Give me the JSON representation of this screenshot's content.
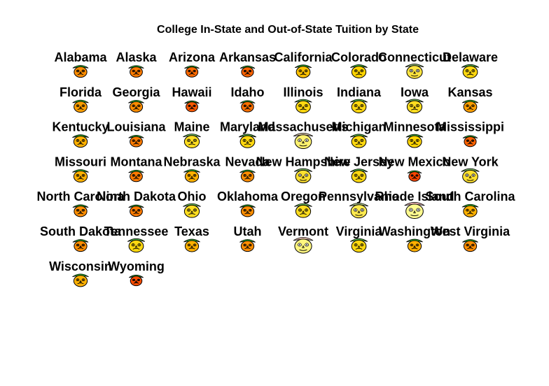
{
  "chart_data": {
    "type": "chernoff-faces",
    "title": "College In-State and Out-of-State Tuition by State",
    "states": [
      "Alabama",
      "Alaska",
      "Arizona",
      "Arkansas",
      "California",
      "Colorado",
      "Connecticut",
      "Delaware",
      "Florida",
      "Georgia",
      "Hawaii",
      "Idaho",
      "Illinois",
      "Indiana",
      "Iowa",
      "Kansas",
      "Kentucky",
      "Louisiana",
      "Maine",
      "Maryland",
      "Massachusetts",
      "Michigan",
      "Minnesota",
      "Mississippi",
      "Missouri",
      "Montana",
      "Nebraska",
      "Nevada",
      "New Hampshire",
      "New Jersey",
      "New Mexico",
      "New York",
      "North Carolina",
      "North Dakota",
      "Ohio",
      "Oklahoma",
      "Oregon",
      "Pennsylvania",
      "Rhode Island",
      "South Carolina",
      "South Dakota",
      "Tennessee",
      "Texas",
      "Utah",
      "Vermont",
      "Virginia",
      "Washington",
      "West Virginia",
      "Wisconsin",
      "Wyoming"
    ],
    "face_levels": [
      0.3,
      0.25,
      0.2,
      0.18,
      0.45,
      0.5,
      0.7,
      0.55,
      0.35,
      0.3,
      0.15,
      0.22,
      0.55,
      0.55,
      0.6,
      0.35,
      0.4,
      0.25,
      0.6,
      0.55,
      0.85,
      0.55,
      0.5,
      0.18,
      0.4,
      0.25,
      0.4,
      0.3,
      0.65,
      0.55,
      0.1,
      0.65,
      0.3,
      0.25,
      0.6,
      0.3,
      0.6,
      0.75,
      0.95,
      0.4,
      0.3,
      0.55,
      0.4,
      0.3,
      0.9,
      0.55,
      0.4,
      0.3,
      0.4,
      0.12
    ],
    "colors": {
      "low": "#ff2400",
      "mid": "#ffd400",
      "high": "#ffffa0",
      "hair_low": "#33cc33",
      "hair_high": "#ffc0c0"
    }
  }
}
